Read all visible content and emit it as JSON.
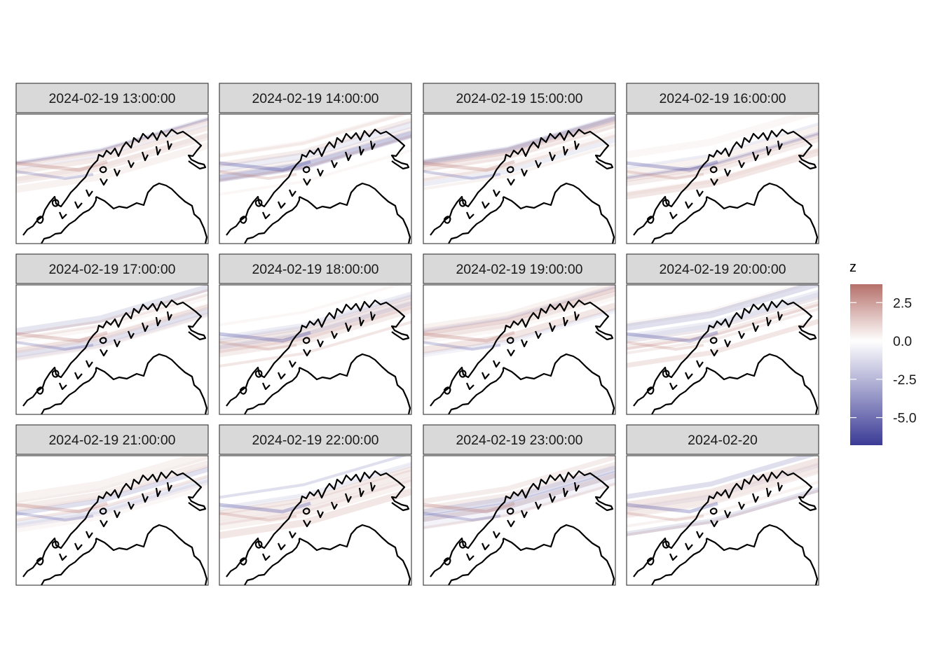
{
  "chart_data": {
    "type": "heatmap",
    "facet_by": "time",
    "facets": [
      {
        "label": "2024-02-19 13:00:00"
      },
      {
        "label": "2024-02-19 14:00:00"
      },
      {
        "label": "2024-02-19 15:00:00"
      },
      {
        "label": "2024-02-19 16:00:00"
      },
      {
        "label": "2024-02-19 17:00:00"
      },
      {
        "label": "2024-02-19 18:00:00"
      },
      {
        "label": "2024-02-19 19:00:00"
      },
      {
        "label": "2024-02-19 20:00:00"
      },
      {
        "label": "2024-02-19 21:00:00"
      },
      {
        "label": "2024-02-19 22:00:00"
      },
      {
        "label": "2024-02-19 23:00:00"
      },
      {
        "label": "2024-02-20"
      }
    ],
    "layout": {
      "rows": 3,
      "cols": 4
    },
    "fill_variable": "z",
    "legend": {
      "title": "z",
      "placement": "right",
      "ticks": [
        2.5,
        0.0,
        -2.5,
        -5.0
      ],
      "tick_labels": [
        "2.5",
        "0.0",
        "-2.5",
        "-5.0"
      ],
      "limits": [
        -6.8,
        3.7
      ],
      "colors": {
        "high": "#b5706a",
        "mid": "#ffffff",
        "low": "#3b3b96"
      }
    },
    "grid": false,
    "xlabel": "",
    "ylabel": ""
  }
}
